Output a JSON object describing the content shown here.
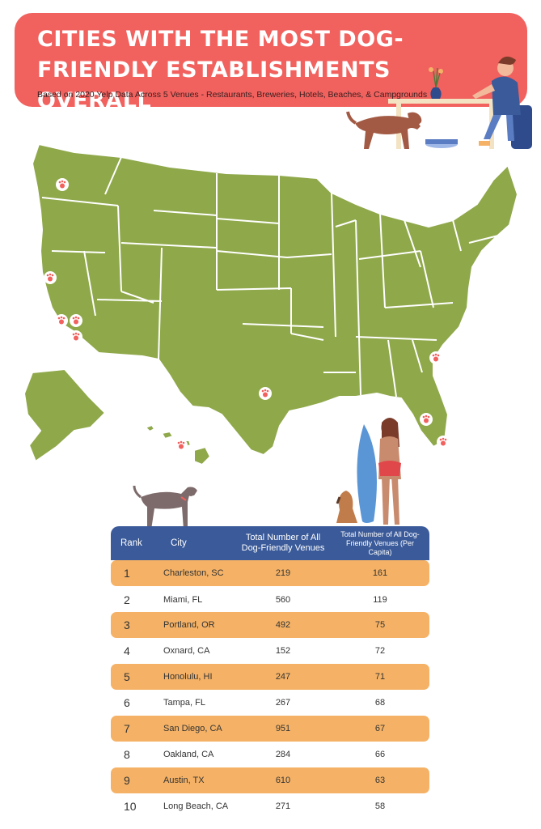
{
  "header": {
    "title": "Cities With the Most Dog-Friendly Establishments Overall",
    "subtitle": "Based on 2020 Yelp Data Across 5 Venues - Restaurants, Breweries, Hotels, Beaches, & Campgrounds"
  },
  "colors": {
    "banner": "#f1615e",
    "map_fill": "#8fa84a",
    "map_border": "#ffffff",
    "header_row": "#3a5a99",
    "shaded_row": "#f5b266",
    "paw_marker": "#f1615e"
  },
  "map": {
    "icon": "paw-marker-icon",
    "marked_cities": [
      "Portland, OR",
      "Oakland, CA",
      "Oxnard, CA",
      "Long Beach, CA",
      "San Diego, CA",
      "Austin, TX",
      "Charleston, SC",
      "Tampa, FL",
      "Miami, FL",
      "Honolulu, HI"
    ]
  },
  "table": {
    "headers": {
      "rank": "Rank",
      "city": "City",
      "total": "Total Number of All Dog-Friendly Venues",
      "per_capita": "Total Number of All Dog-Friendly Venues (Per Capita)"
    },
    "rows": [
      {
        "rank": "1",
        "city": "Charleston, SC",
        "total": "219",
        "per_capita": "161"
      },
      {
        "rank": "2",
        "city": "Miami, FL",
        "total": "560",
        "per_capita": "119"
      },
      {
        "rank": "3",
        "city": "Portland, OR",
        "total": "492",
        "per_capita": "75"
      },
      {
        "rank": "4",
        "city": "Oxnard, CA",
        "total": "152",
        "per_capita": "72"
      },
      {
        "rank": "5",
        "city": "Honolulu, HI",
        "total": "247",
        "per_capita": "71"
      },
      {
        "rank": "6",
        "city": "Tampa, FL",
        "total": "267",
        "per_capita": "68"
      },
      {
        "rank": "7",
        "city": "San Diego, CA",
        "total": "951",
        "per_capita": "67"
      },
      {
        "rank": "8",
        "city": "Oakland, CA",
        "total": "284",
        "per_capita": "66"
      },
      {
        "rank": "9",
        "city": "Austin, TX",
        "total": "610",
        "per_capita": "63"
      },
      {
        "rank": "10",
        "city": "Long Beach, CA",
        "total": "271",
        "per_capita": "58"
      }
    ]
  }
}
